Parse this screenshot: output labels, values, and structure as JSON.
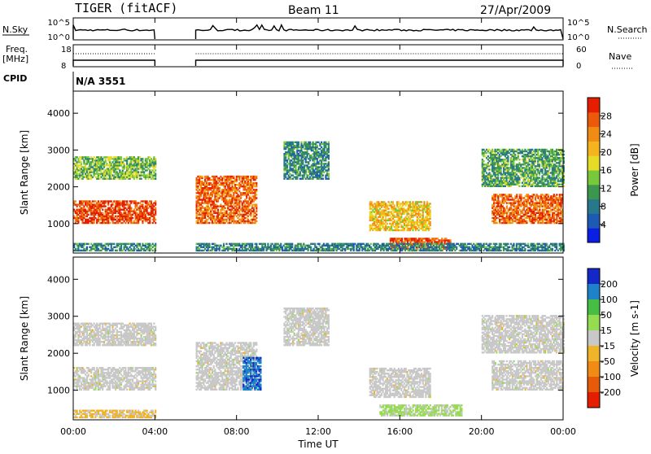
{
  "header": {
    "title": "TIGER (fitACF)",
    "beam": "Beam 11",
    "date": "27/Apr/2009"
  },
  "strips": {
    "nsky": {
      "label": "N.Sky",
      "tick_top": "10^5",
      "tick_bottom": "10^0"
    },
    "nsearch": {
      "label": "N.Search",
      "tick_top": "10^5",
      "tick_bottom": "10^0"
    },
    "freq": {
      "label_line1": "Freq.",
      "label_line2": "[MHz]",
      "tick_top": "18",
      "tick_bottom": "8"
    },
    "nave": {
      "label": "Nave",
      "tick_top": "60",
      "tick_bottom": "0"
    },
    "cpid": {
      "label": "CPID",
      "value": "N/A 3551"
    }
  },
  "chart_data": [
    {
      "type": "heatmap",
      "title": "",
      "ylabel": "Slant Range [km]",
      "ylim": [
        200,
        4600
      ],
      "yticks": [
        "1000",
        "2000",
        "3000",
        "4000"
      ],
      "xlim_hours": [
        0,
        24
      ],
      "data_gap_hours": [
        4,
        6
      ],
      "colorbar": {
        "label": "Power [dB]",
        "ticks": [
          "4",
          "8",
          "12",
          "16",
          "20",
          "24",
          "28"
        ],
        "range": [
          0,
          30
        ],
        "colors": [
          "#0a1ee6",
          "#1e5ab4",
          "#28788c",
          "#3c9650",
          "#78c83c",
          "#e6dc28",
          "#f5b41e",
          "#f08c14",
          "#eb5a0a",
          "#e61e00"
        ]
      },
      "echo_regions": [
        {
          "t": [
            0,
            4
          ],
          "r": [
            1000,
            1600
          ],
          "power": 27
        },
        {
          "t": [
            0,
            4
          ],
          "r": [
            2200,
            2800
          ],
          "power": 13
        },
        {
          "t": [
            0,
            4
          ],
          "r": [
            250,
            450
          ],
          "power": 9
        },
        {
          "t": [
            6,
            9
          ],
          "r": [
            1000,
            2300
          ],
          "power": 25
        },
        {
          "t": [
            10.3,
            12.5
          ],
          "r": [
            2200,
            3200
          ],
          "power": 9
        },
        {
          "t": [
            14.5,
            17.5
          ],
          "r": [
            800,
            1600
          ],
          "power": 19
        },
        {
          "t": [
            15.5,
            18.5
          ],
          "r": [
            300,
            600
          ],
          "power": 26
        },
        {
          "t": [
            20.5,
            24
          ],
          "r": [
            1000,
            1800
          ],
          "power": 25
        },
        {
          "t": [
            20,
            24
          ],
          "r": [
            2000,
            3000
          ],
          "power": 11
        },
        {
          "t": [
            6,
            24
          ],
          "r": [
            250,
            450
          ],
          "power": 8
        }
      ]
    },
    {
      "type": "heatmap",
      "title": "",
      "ylabel": "Slant Range [km]",
      "xlabel": "Time UT",
      "ylim": [
        200,
        4600
      ],
      "yticks": [
        "1000",
        "2000",
        "3000",
        "4000"
      ],
      "xticks": [
        "00:00",
        "04:00",
        "08:00",
        "12:00",
        "16:00",
        "20:00",
        "00:00"
      ],
      "xlim_hours": [
        0,
        24
      ],
      "data_gap_hours": [
        4,
        6
      ],
      "colorbar": {
        "label": "Velocity [m s-1]",
        "ticks": [
          "200",
          "100",
          "50",
          "15",
          "-15",
          "-50",
          "-100",
          "-200"
        ],
        "range": [
          -250,
          250
        ],
        "colors": [
          "#1428c8",
          "#1e82c8",
          "#46be46",
          "#96dc50",
          "#c8c8c8",
          "#f0b428",
          "#f08c14",
          "#e65a0a",
          "#e61e00"
        ]
      },
      "echo_regions": [
        {
          "t": [
            0,
            4
          ],
          "r": [
            1000,
            1600
          ],
          "velocity": 0
        },
        {
          "t": [
            0,
            4
          ],
          "r": [
            2200,
            2800
          ],
          "velocity": 0
        },
        {
          "t": [
            0,
            4
          ],
          "r": [
            250,
            450
          ],
          "velocity": -40
        },
        {
          "t": [
            6,
            9
          ],
          "r": [
            1000,
            2300
          ],
          "velocity": 0
        },
        {
          "t": [
            8.3,
            9.2
          ],
          "r": [
            1000,
            1900
          ],
          "velocity": 180
        },
        {
          "t": [
            10.3,
            12.5
          ],
          "r": [
            2200,
            3200
          ],
          "velocity": 0
        },
        {
          "t": [
            14.5,
            17.5
          ],
          "r": [
            800,
            1600
          ],
          "velocity": 0
        },
        {
          "t": [
            15,
            19
          ],
          "r": [
            300,
            600
          ],
          "velocity": 40
        },
        {
          "t": [
            20.5,
            24
          ],
          "r": [
            1000,
            1800
          ],
          "velocity": 0
        },
        {
          "t": [
            20,
            24
          ],
          "r": [
            2000,
            3000
          ],
          "velocity": 0
        }
      ]
    }
  ]
}
